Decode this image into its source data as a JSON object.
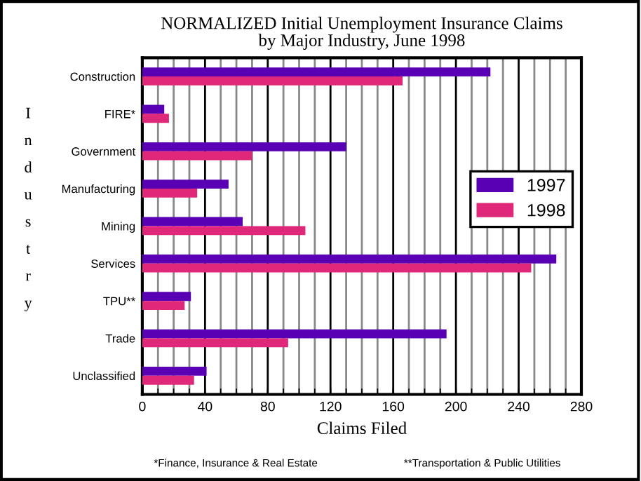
{
  "chart_data": {
    "type": "bar",
    "orientation": "horizontal",
    "title": "NORMALIZED Initial Unemployment Insurance Claims\nby Major Industry, June 1998",
    "categories": [
      "Construction",
      "FIRE*",
      "Government",
      "Manufacturing",
      "Mining",
      "Services",
      "TPU**",
      "Trade",
      "Unclassified"
    ],
    "series": [
      {
        "name": "1997",
        "color": "#5a00b4",
        "values": [
          222,
          14,
          130,
          55,
          64,
          264,
          31,
          194,
          41
        ]
      },
      {
        "name": "1998",
        "color": "#e0287a",
        "values": [
          166,
          17,
          70,
          35,
          104,
          248,
          27,
          93,
          33
        ]
      }
    ],
    "xlim": [
      0,
      280
    ],
    "xticks": [
      0,
      40,
      80,
      120,
      160,
      200,
      240,
      280
    ],
    "xlabel": "Claims Filed",
    "ylabel": "Industry",
    "annotations": [
      "*Finance, Insurance & Real Estate",
      "**Transportation & Public Utilities"
    ],
    "grid": "x",
    "legend": "right"
  }
}
